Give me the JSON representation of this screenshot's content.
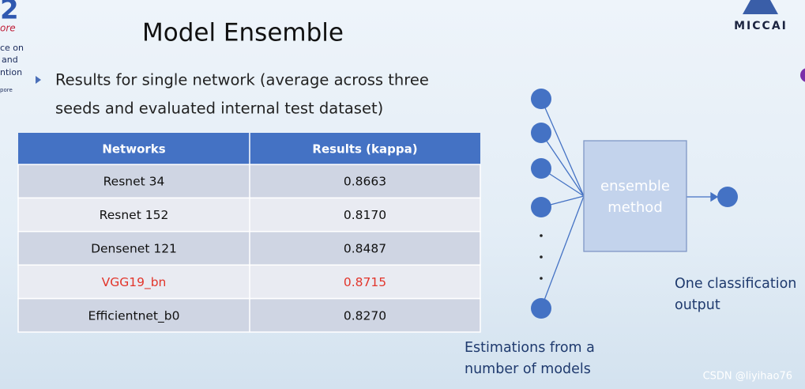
{
  "header": {
    "title": "Model Ensemble",
    "logo_left": [
      "2",
      "ore",
      "ce on",
      "and",
      "ntion",
      "pore"
    ],
    "logo_right": "MICCAI"
  },
  "bullet": [
    "Results for single network (average across three",
    "seeds and evaluated internal test dataset)"
  ],
  "table": {
    "headers": [
      "Networks",
      "Results (kappa)"
    ],
    "rows": [
      [
        "Resnet 34",
        "0.8663"
      ],
      [
        "Resnet 152",
        "0.8170"
      ],
      [
        "Densenet 121",
        "0.8487"
      ],
      [
        "VGG19_bn",
        "0.8715"
      ],
      [
        "Efficientnet_b0",
        "0.8270"
      ]
    ]
  },
  "diagram": {
    "box": [
      "ensemble",
      "method"
    ],
    "output": [
      "One classification",
      "output"
    ],
    "inputs": [
      "Estimations from a",
      "number of models"
    ]
  },
  "watermark": "CSDN @liyihao76"
}
